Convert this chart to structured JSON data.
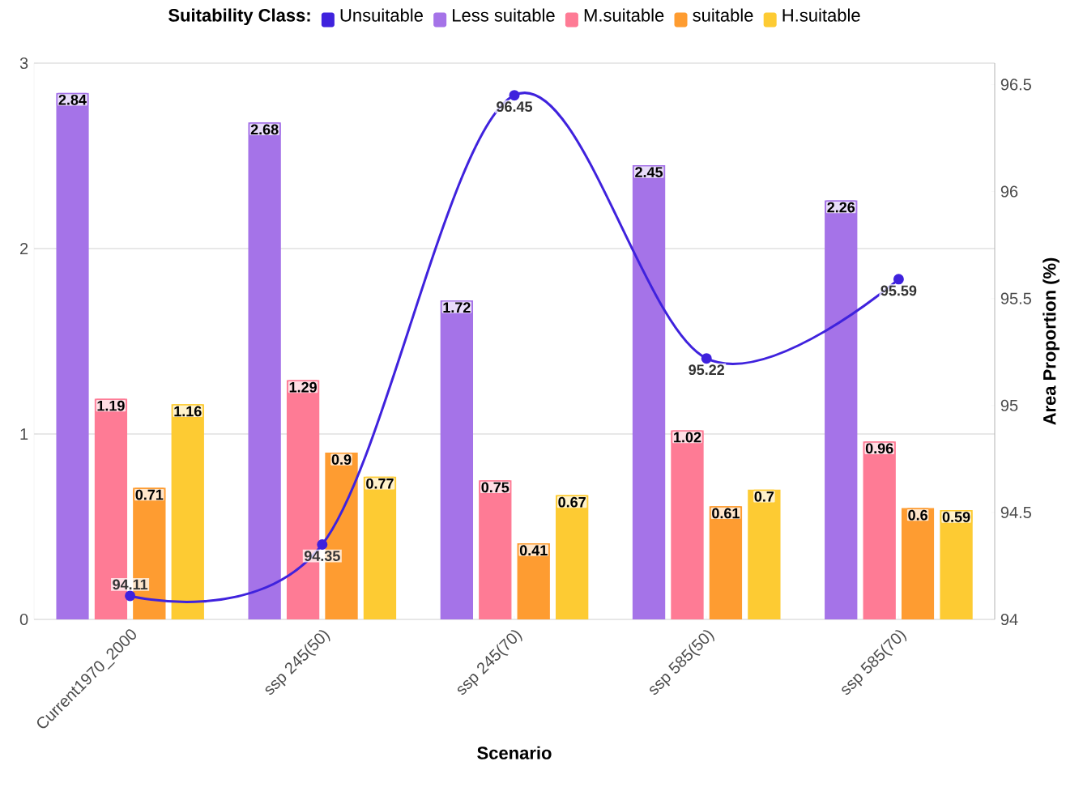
{
  "chart_data": {
    "type": "bar",
    "legend_title": "Suitability Class:",
    "xlabel": "Scenario",
    "y2label": "Area Proportion (%)",
    "categories": [
      "Current1970_2000",
      "ssp 245(50)",
      "ssp 245(70)",
      "ssp 585(50)",
      "ssp 585(70)"
    ],
    "series": [
      {
        "name": "Unsuitable",
        "type": "line",
        "axis": "y2",
        "color": "#3f22dd",
        "values": [
          94.11,
          94.35,
          96.45,
          95.22,
          95.59
        ]
      },
      {
        "name": "Less suitable",
        "color": "#a573e8",
        "values": [
          2.84,
          2.68,
          1.72,
          2.45,
          2.26
        ]
      },
      {
        "name": "M.suitable",
        "color": "#fe7b95",
        "values": [
          1.19,
          1.29,
          0.75,
          1.02,
          0.96
        ]
      },
      {
        "name": "suitable",
        "color": "#fe9c31",
        "values": [
          0.71,
          0.9,
          0.41,
          0.61,
          0.6
        ]
      },
      {
        "name": "H.suitable",
        "color": "#fdcb33",
        "values": [
          1.16,
          0.77,
          0.67,
          0.7,
          0.59
        ]
      }
    ],
    "ylim": [
      0,
      3
    ],
    "yticks": [
      0,
      1,
      2,
      3
    ],
    "y2lim": [
      94,
      96.6
    ],
    "y2ticks": [
      94,
      94.5,
      95,
      95.5,
      96,
      96.5
    ],
    "grid": "y",
    "legend": "top",
    "marker": "circle",
    "data_labels": true
  }
}
